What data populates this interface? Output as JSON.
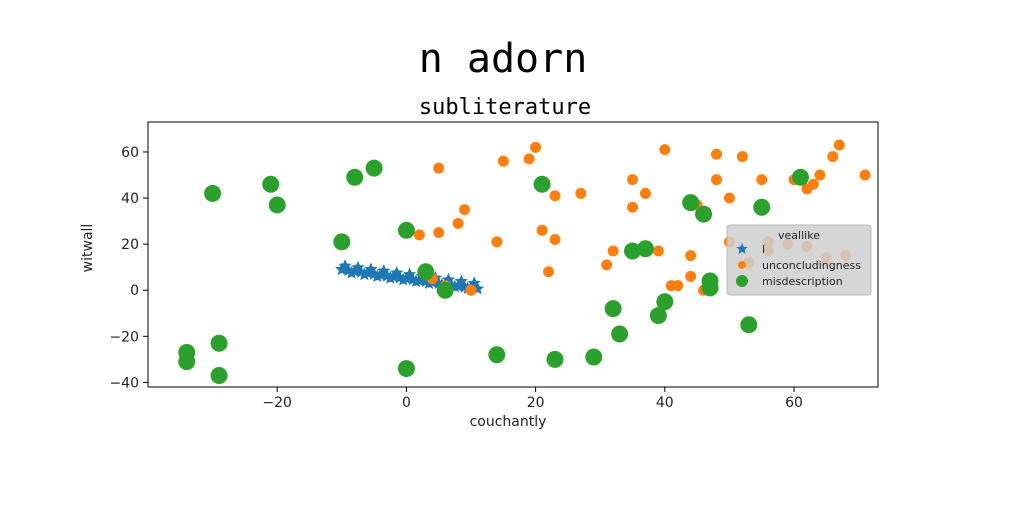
{
  "page": {
    "title": "n adorn"
  },
  "chart_data": {
    "type": "scatter",
    "title": "subliterature",
    "xlabel": "couchantly",
    "ylabel": "witwall",
    "xlim": [
      -40,
      73
    ],
    "ylim": [
      -42,
      73
    ],
    "xticks": [
      -20,
      0,
      20,
      40,
      60
    ],
    "yticks": [
      -40,
      -20,
      0,
      20,
      40,
      60
    ],
    "grid": false,
    "legend": {
      "title": "veallike",
      "placement": "right"
    },
    "series": [
      {
        "name": "l",
        "marker": "star",
        "color": "#1f77b4",
        "x": [
          -10,
          -9,
          -8,
          -7,
          -6,
          -5,
          -4,
          -3,
          -2,
          -1,
          0,
          1,
          2,
          3,
          4,
          5,
          6,
          7,
          8,
          9,
          10,
          11,
          -9.5,
          -7.5,
          -5.5,
          -3.5,
          -1.5,
          0.5,
          2.5,
          4.5,
          6.5,
          8.5,
          10.5,
          -8.5,
          -6.5,
          -4.5,
          -2.5,
          -0.5,
          1.5,
          3.5,
          5.5,
          7.5,
          9.5
        ],
        "y": [
          9,
          8.6,
          8.2,
          7.8,
          7.4,
          7,
          6.6,
          6.2,
          5.8,
          5.4,
          5,
          4.6,
          4.2,
          3.8,
          3.4,
          3,
          2.6,
          2.2,
          1.8,
          1.4,
          1,
          0.6,
          10.5,
          9.8,
          9,
          8.3,
          7.5,
          6.8,
          6,
          5.3,
          4.5,
          3.8,
          3,
          7.5,
          6.8,
          6,
          5.3,
          4.5,
          3.8,
          3,
          2.3,
          1.5,
          0.8
        ]
      },
      {
        "name": "unconcludingness",
        "marker": "circle",
        "color": "#ff7f0e",
        "x": [
          5,
          9,
          8,
          2,
          5,
          3,
          4,
          6,
          10,
          15,
          14,
          19,
          20,
          21,
          23,
          23,
          27,
          22,
          31,
          32,
          35,
          35,
          37,
          39,
          40,
          41,
          44,
          45,
          47,
          48,
          48,
          50,
          50,
          52,
          53,
          55,
          56,
          56,
          60,
          62,
          63,
          64,
          66,
          67,
          68,
          71,
          62,
          59,
          65,
          42,
          44,
          46
        ],
        "y": [
          53,
          35,
          29,
          24,
          25,
          8,
          5,
          2,
          0,
          56,
          21,
          57,
          62,
          26,
          41,
          22,
          42,
          8,
          11,
          17,
          48,
          36,
          42,
          17,
          61,
          2,
          15,
          37,
          1,
          59,
          48,
          21,
          40,
          58,
          12,
          48,
          21,
          17,
          48,
          44,
          46,
          50,
          58,
          63,
          15,
          50,
          19,
          20,
          14,
          2,
          6,
          0
        ]
      },
      {
        "name": "misdescription",
        "marker": "circle",
        "color": "#2ca02c",
        "x": [
          -30,
          -21,
          -20,
          -8,
          -5,
          -10,
          0,
          3,
          6,
          -34,
          -34,
          -29,
          -29,
          0,
          14,
          23,
          29,
          21,
          32,
          33,
          35,
          37,
          39,
          40,
          44,
          46,
          47,
          47,
          53,
          55,
          61
        ],
        "y": [
          42,
          46,
          37,
          49,
          53,
          21,
          26,
          8,
          0,
          -27,
          -31,
          -23,
          -37,
          -34,
          -28,
          -30,
          -29,
          46,
          -8,
          -19,
          17,
          18,
          -11,
          -5,
          38,
          33,
          4,
          1,
          -15,
          36,
          49
        ]
      }
    ]
  }
}
